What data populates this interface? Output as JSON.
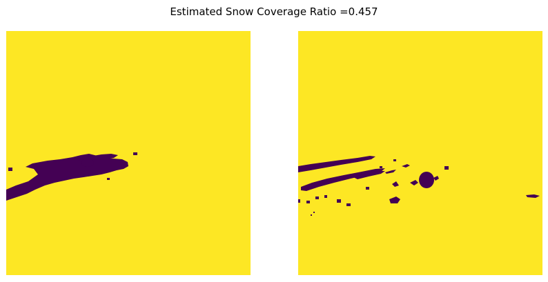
{
  "figure": {
    "title": "Estimated Snow Coverage Ratio =0.457"
  },
  "colors": {
    "snow": "#FDE724",
    "no_snow": "#440154",
    "background": "#ffffff"
  },
  "panels": [
    {
      "id": "mask-a"
    },
    {
      "id": "mask-b"
    }
  ]
}
